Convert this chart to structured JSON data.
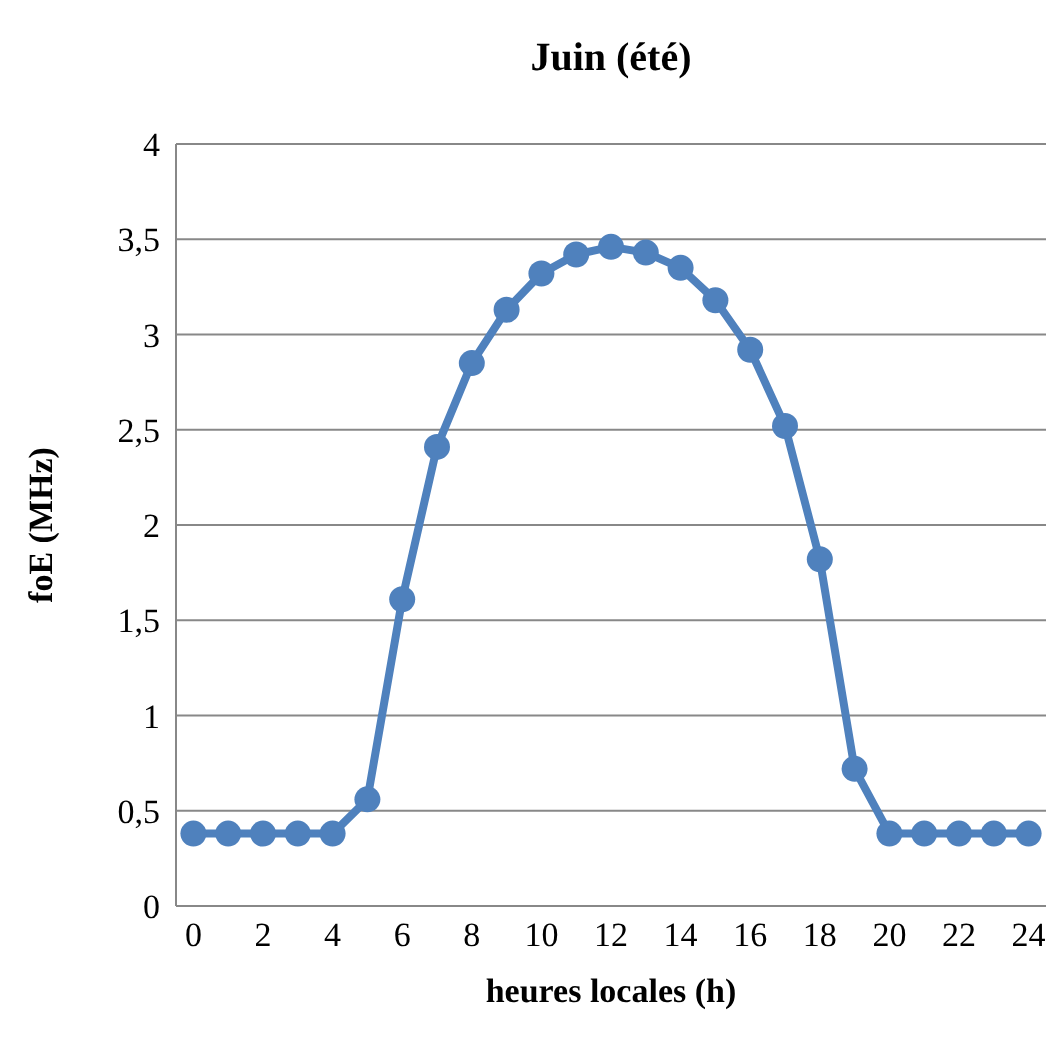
{
  "chart_data": {
    "type": "line",
    "title": "Juin (été)",
    "xlabel": "heures locales (h)",
    "ylabel": "foE (MHz)",
    "x": [
      0,
      1,
      2,
      3,
      4,
      5,
      6,
      7,
      8,
      9,
      10,
      11,
      12,
      13,
      14,
      15,
      16,
      17,
      18,
      19,
      20,
      21,
      22,
      23,
      24
    ],
    "series": [
      {
        "color": "#4f81bd",
        "values": [
          0.38,
          0.38,
          0.38,
          0.38,
          0.38,
          0.56,
          1.61,
          2.41,
          2.85,
          3.13,
          3.32,
          3.42,
          3.46,
          3.43,
          3.35,
          3.18,
          2.92,
          2.52,
          1.82,
          0.72,
          0.38,
          0.38,
          0.38,
          0.38,
          0.38
        ]
      }
    ],
    "xlim": [
      -0.5,
      24.5
    ],
    "xticks": [
      0,
      2,
      4,
      6,
      8,
      10,
      12,
      14,
      16,
      18,
      20,
      22,
      24
    ],
    "ylim": [
      0,
      4
    ],
    "yticks": [
      0,
      {
        "value": 0.5,
        "label": "0,5"
      },
      1,
      {
        "value": 1.5,
        "label": "1,5"
      },
      2,
      {
        "value": 2.5,
        "label": "2,5"
      },
      3,
      {
        "value": 3.5,
        "label": "3,5"
      },
      4
    ],
    "grid": "y",
    "marker": "circle",
    "line_style": "solid"
  }
}
